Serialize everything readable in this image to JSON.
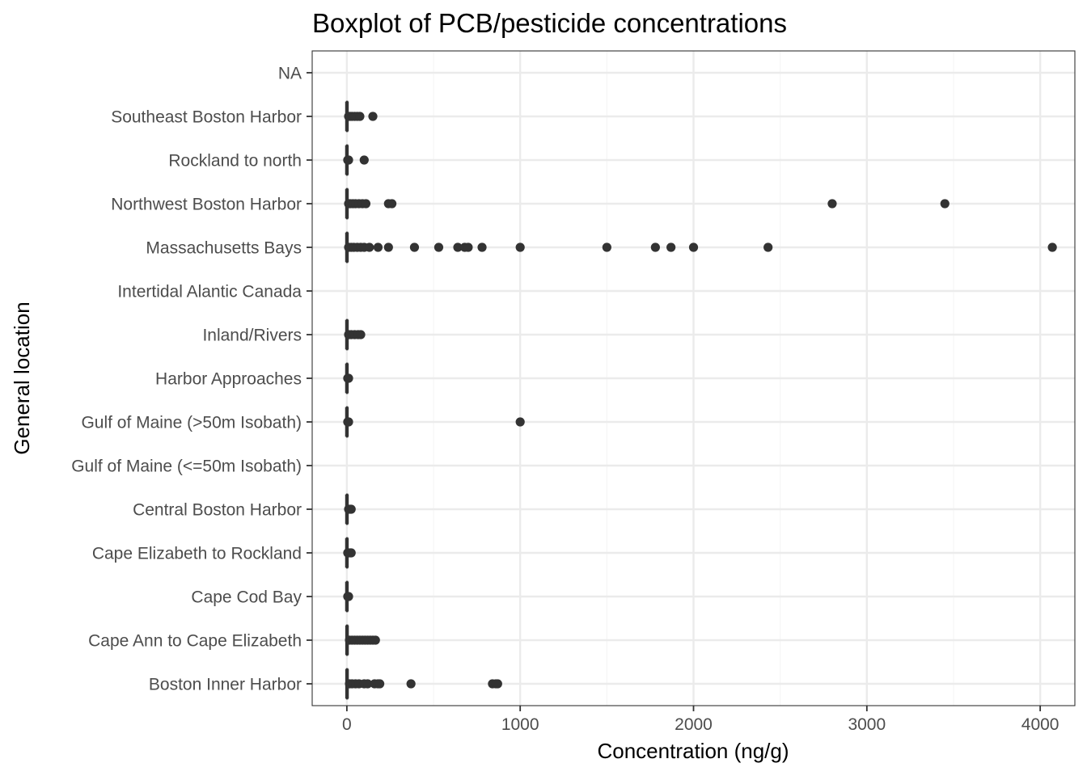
{
  "chart_data": {
    "type": "boxplot",
    "orientation": "horizontal",
    "title": "Boxplot of PCB/pesticide concentrations",
    "xlabel": "Concentration (ng/g)",
    "ylabel": "General location",
    "xlim": [
      -200,
      4200
    ],
    "xticks": [
      0,
      1000,
      2000,
      3000,
      4000
    ],
    "xtick_labels": [
      "0",
      "1000",
      "2000",
      "3000",
      "4000"
    ],
    "grid": true,
    "legend": "none",
    "colors": {
      "marks": "#333333",
      "grid_major": "#ebebeb",
      "grid_minor": "#f5f5f5",
      "panel_border": "#333333",
      "tick_text": "#4d4d4d"
    },
    "categories": [
      "NA",
      "Southeast Boston Harbor",
      "Rockland to north",
      "Northwest Boston Harbor",
      "Massachusetts Bays",
      "Intertidal Alantic Canada",
      "Inland/Rivers",
      "Harbor Approaches",
      "Gulf of Maine (>50m Isobath)",
      "Gulf of Maine (<=50m Isobath)",
      "Central Boston Harbor",
      "Cape Elizabeth to Rockland",
      "Cape Cod Bay",
      "Cape Ann to Cape Elizabeth",
      "Boston Inner Harbor"
    ],
    "boxes": [
      {
        "category": "NA",
        "min": null,
        "q1": null,
        "median": null,
        "q3": null,
        "max": null,
        "outliers": []
      },
      {
        "category": "Southeast Boston Harbor",
        "min": 0,
        "q1": 0,
        "median": 0.5,
        "q3": 1,
        "max": 3,
        "outliers": [
          10,
          20,
          30,
          45,
          60,
          75,
          150
        ]
      },
      {
        "category": "Rockland to north",
        "min": 0,
        "q1": 0,
        "median": 0.3,
        "q3": 0.6,
        "max": 2,
        "outliers": [
          5,
          10,
          100
        ]
      },
      {
        "category": "Northwest Boston Harbor",
        "min": 0,
        "q1": 0,
        "median": 0.5,
        "q3": 1.5,
        "max": 4,
        "outliers": [
          10,
          20,
          35,
          50,
          70,
          90,
          110,
          240,
          260,
          2800,
          3450
        ]
      },
      {
        "category": "Massachusetts Bays",
        "min": 0,
        "q1": 0,
        "median": 0.5,
        "q3": 2,
        "max": 5,
        "outliers": [
          10,
          25,
          40,
          60,
          80,
          100,
          130,
          180,
          240,
          390,
          530,
          640,
          680,
          700,
          780,
          1000,
          1500,
          1780,
          1870,
          2000,
          2430,
          4070
        ]
      },
      {
        "category": "Intertidal Alantic Canada",
        "min": null,
        "q1": null,
        "median": null,
        "q3": null,
        "max": null,
        "outliers": []
      },
      {
        "category": "Inland/Rivers",
        "min": 0,
        "q1": 0,
        "median": 0.5,
        "q3": 1.5,
        "max": 4,
        "outliers": [
          10,
          25,
          45,
          65,
          80
        ]
      },
      {
        "category": "Harbor Approaches",
        "min": 0,
        "q1": 0,
        "median": 0.3,
        "q3": 0.6,
        "max": 2,
        "outliers": [
          5,
          10
        ]
      },
      {
        "category": "Gulf of Maine (>50m Isobath)",
        "min": 0,
        "q1": 0,
        "median": 0.3,
        "q3": 0.6,
        "max": 2,
        "outliers": [
          5,
          10,
          1000
        ]
      },
      {
        "category": "Gulf of Maine (<=50m Isobath)",
        "min": null,
        "q1": null,
        "median": null,
        "q3": null,
        "max": null,
        "outliers": []
      },
      {
        "category": "Central Boston Harbor",
        "min": 0,
        "q1": 0,
        "median": 0.5,
        "q3": 1,
        "max": 3,
        "outliers": [
          10,
          20,
          25
        ]
      },
      {
        "category": "Cape Elizabeth to Rockland",
        "min": 0,
        "q1": 0,
        "median": 0.3,
        "q3": 0.6,
        "max": 2,
        "outliers": [
          5,
          10,
          20,
          25
        ]
      },
      {
        "category": "Cape Cod Bay",
        "min": 0,
        "q1": 0,
        "median": 0.3,
        "q3": 0.6,
        "max": 2,
        "outliers": [
          5,
          10
        ]
      },
      {
        "category": "Cape Ann to Cape Elizabeth",
        "min": 0,
        "q1": 0,
        "median": 1,
        "q3": 3,
        "max": 8,
        "outliers": [
          15,
          30,
          45,
          60,
          75,
          90,
          105,
          120,
          135,
          150,
          165
        ]
      },
      {
        "category": "Boston Inner Harbor",
        "min": 0,
        "q1": 0,
        "median": 1,
        "q3": 3,
        "max": 8,
        "outliers": [
          15,
          30,
          50,
          70,
          100,
          120,
          160,
          180,
          190,
          370,
          840,
          860,
          870
        ]
      }
    ]
  }
}
